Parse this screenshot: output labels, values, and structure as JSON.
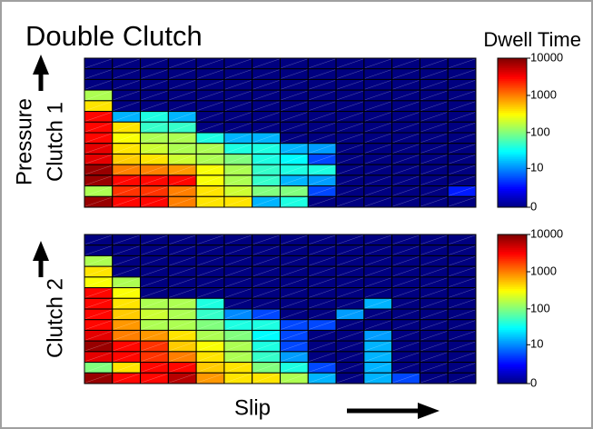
{
  "chart_data": [
    {
      "type": "heatmap",
      "title": "Double Clutch",
      "colorbar_title": "Dwell Time",
      "ylabel": [
        "Pressure",
        "Clutch 1"
      ],
      "scale": "log1p",
      "clim": [
        0,
        10000
      ],
      "cticks": [
        0,
        10,
        100,
        1000,
        10000
      ],
      "z": [
        [
          0,
          0,
          0,
          0,
          0,
          0,
          0,
          0,
          0,
          0,
          0,
          0,
          0,
          0
        ],
        [
          0,
          0,
          0,
          0,
          0,
          0,
          0,
          0,
          0,
          0,
          0,
          0,
          0,
          0
        ],
        [
          0,
          0,
          0,
          0,
          0,
          0,
          0,
          0,
          0,
          0,
          0,
          0,
          0,
          0
        ],
        [
          150,
          0,
          0,
          0,
          0,
          0,
          0,
          0,
          0,
          0,
          0,
          0,
          0,
          0
        ],
        [
          400,
          0,
          0,
          0,
          0,
          0,
          0,
          0,
          0,
          0,
          0,
          0,
          0,
          0
        ],
        [
          3000,
          15,
          40,
          15,
          0,
          0,
          0,
          0,
          0,
          0,
          0,
          0,
          0,
          0
        ],
        [
          3000,
          400,
          50,
          50,
          0,
          0,
          0,
          0,
          0,
          0,
          0,
          0,
          0,
          0
        ],
        [
          3000,
          300,
          150,
          150,
          40,
          15,
          15,
          0,
          0,
          0,
          0,
          0,
          0,
          0
        ],
        [
          4000,
          400,
          200,
          150,
          150,
          40,
          40,
          15,
          12,
          0,
          0,
          0,
          0,
          0
        ],
        [
          4000,
          500,
          400,
          200,
          150,
          100,
          40,
          30,
          5,
          0,
          0,
          0,
          0,
          0
        ],
        [
          8000,
          1000,
          1000,
          800,
          300,
          150,
          50,
          40,
          40,
          0,
          0,
          0,
          0,
          0
        ],
        [
          8000,
          3000,
          3000,
          3000,
          300,
          150,
          50,
          15,
          12,
          0,
          0,
          0,
          0,
          0
        ],
        [
          150,
          2000,
          2000,
          1000,
          400,
          200,
          100,
          100,
          5,
          0,
          0,
          0,
          0,
          3
        ],
        [
          8000,
          3000,
          3000,
          1000,
          400,
          400,
          15,
          40,
          0,
          0,
          0,
          0,
          0,
          0
        ]
      ]
    },
    {
      "type": "heatmap",
      "xlabel": "Slip",
      "ylabel": [
        "Clutch 2"
      ],
      "scale": "log1p",
      "clim": [
        0,
        10000
      ],
      "cticks": [
        0,
        10,
        100,
        1000,
        10000
      ],
      "z": [
        [
          0,
          0,
          0,
          0,
          0,
          0,
          0,
          0,
          0,
          0,
          0,
          0,
          0,
          0
        ],
        [
          0,
          0,
          0,
          0,
          0,
          0,
          0,
          0,
          0,
          0,
          0,
          0,
          0,
          0
        ],
        [
          150,
          0,
          0,
          0,
          0,
          0,
          0,
          0,
          0,
          0,
          0,
          0,
          0,
          0
        ],
        [
          400,
          0,
          0,
          0,
          0,
          0,
          0,
          0,
          0,
          0,
          0,
          0,
          0,
          0
        ],
        [
          300,
          150,
          0,
          0,
          0,
          0,
          0,
          0,
          0,
          0,
          0,
          0,
          0,
          0
        ],
        [
          3000,
          300,
          0,
          0,
          0,
          0,
          0,
          0,
          0,
          0,
          0,
          0,
          0,
          0
        ],
        [
          3000,
          400,
          150,
          150,
          40,
          0,
          0,
          0,
          0,
          0,
          15,
          0,
          0,
          0
        ],
        [
          3000,
          500,
          200,
          150,
          50,
          10,
          5,
          0,
          0,
          12,
          0,
          0,
          0,
          0
        ],
        [
          3000,
          800,
          150,
          150,
          100,
          40,
          40,
          5,
          5,
          0,
          0,
          0,
          0,
          0
        ],
        [
          4000,
          1000,
          800,
          400,
          150,
          100,
          30,
          5,
          0,
          0,
          12,
          0,
          0,
          0
        ],
        [
          8000,
          3000,
          2000,
          500,
          300,
          150,
          40,
          5,
          0,
          0,
          15,
          0,
          0,
          0
        ],
        [
          4000,
          3000,
          2000,
          1000,
          400,
          150,
          50,
          12,
          0,
          0,
          15,
          0,
          0,
          0
        ],
        [
          100,
          400,
          3000,
          3000,
          500,
          400,
          100,
          40,
          5,
          0,
          15,
          0,
          0,
          0
        ],
        [
          8000,
          3000,
          3000,
          6000,
          800,
          400,
          400,
          150,
          15,
          0,
          15,
          5,
          0,
          0
        ]
      ]
    }
  ]
}
